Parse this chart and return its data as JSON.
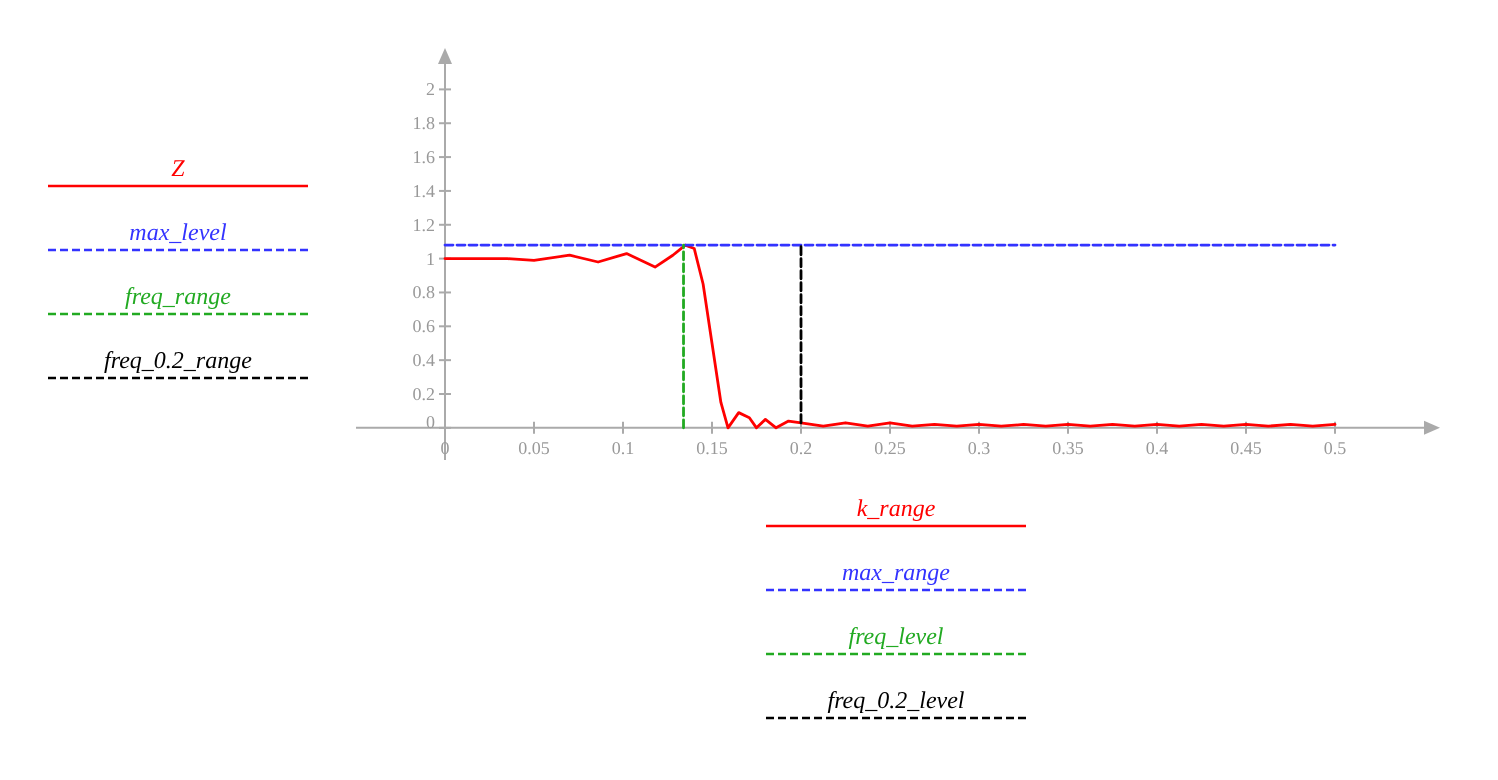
{
  "chart_data": {
    "type": "line",
    "xlim": [
      -0.05,
      0.55
    ],
    "ylim": [
      -0.19,
      2.15
    ],
    "xticks": [
      0,
      0.05,
      0.1,
      0.15,
      0.2,
      0.25,
      0.3,
      0.35,
      0.4,
      0.45,
      0.5
    ],
    "yticks": [
      0,
      0.2,
      0.4,
      0.6,
      0.8,
      1,
      1.2,
      1.4,
      1.6,
      1.8,
      2
    ],
    "grid": false,
    "legend": "left",
    "marker": "none",
    "annotations": [
      "k_range",
      "max_range",
      "freq_level",
      "freq_0.2_level"
    ],
    "series": [
      {
        "name": "Z",
        "color": "#ff0000",
        "line_style": "solid",
        "x": [
          0,
          0.02,
          0.035,
          0.05,
          0.07,
          0.086,
          0.102,
          0.118,
          0.128,
          0.135,
          0.14,
          0.145,
          0.15,
          0.155,
          0.159,
          0.165,
          0.171,
          0.175,
          0.18,
          0.186,
          0.193,
          0.2,
          0.2125,
          0.225,
          0.2375,
          0.25,
          0.2625,
          0.275,
          0.2875,
          0.3,
          0.3125,
          0.325,
          0.3375,
          0.35,
          0.3625,
          0.375,
          0.3875,
          0.4,
          0.4125,
          0.425,
          0.4375,
          0.45,
          0.4625,
          0.475,
          0.4875,
          0.5
        ],
        "values": [
          1.0,
          1.0,
          1.0,
          0.99,
          1.02,
          0.98,
          1.03,
          0.95,
          1.02,
          1.08,
          1.06,
          0.85,
          0.5,
          0.15,
          0.0,
          0.09,
          0.06,
          0.0,
          0.05,
          0.0,
          0.04,
          0.03,
          0.01,
          0.03,
          0.01,
          0.03,
          0.01,
          0.02,
          0.01,
          0.02,
          0.01,
          0.02,
          0.01,
          0.02,
          0.01,
          0.02,
          0.01,
          0.02,
          0.01,
          0.02,
          0.01,
          0.02,
          0.01,
          0.02,
          0.01,
          0.02
        ]
      },
      {
        "name": "max_level",
        "color": "#3333ff",
        "line_style": "dashed",
        "x": [
          0,
          0.5
        ],
        "values": [
          1.08,
          1.08
        ]
      },
      {
        "name": "freq_range",
        "color": "#22aa22",
        "line_style": "dashed",
        "x": [
          0.134,
          0.134
        ],
        "values": [
          0,
          1.08
        ]
      },
      {
        "name": "freq_0.2_range",
        "color": "#000000",
        "line_style": "dashed",
        "x": [
          0.2,
          0.2
        ],
        "values": [
          0.03,
          1.08
        ]
      }
    ]
  }
}
